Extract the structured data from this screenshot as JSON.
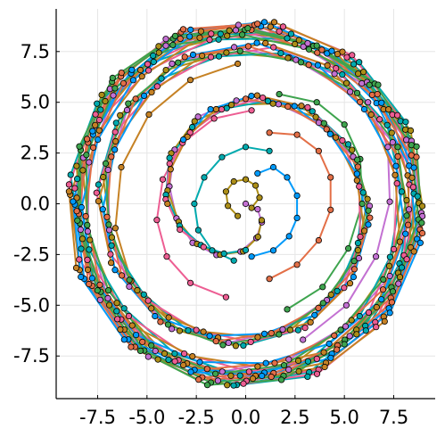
{
  "chart_data": {
    "type": "line",
    "title": "",
    "xlabel": "",
    "ylabel": "",
    "xlim": [
      -9.6,
      9.6
    ],
    "ylim": [
      -9.6,
      9.6
    ],
    "xticks": [
      -7.5,
      -5.0,
      -2.5,
      0.0,
      2.5,
      5.0,
      7.5
    ],
    "yticks": [
      -7.5,
      -5.0,
      -2.5,
      0.0,
      2.5,
      5.0,
      7.5
    ],
    "xtick_labels": [
      "-7.5",
      "-5.0",
      "-2.5",
      "0.0",
      "2.5",
      "5.0",
      "7.5"
    ],
    "ytick_labels": [
      "-7.5",
      "-5.0",
      "-2.5",
      "0.0",
      "2.5",
      "5.0",
      "7.5"
    ],
    "grid": true,
    "legend": "none",
    "markers": true,
    "series_count": 8,
    "series_colors": [
      "#009AFA",
      "#E36F47",
      "#3EA44E",
      "#C371D2",
      "#AC8E18",
      "#00AAAE",
      "#ED5E93",
      "#C68225"
    ],
    "series": [
      {
        "x": [
          0.6,
          1.4,
          2.1,
          2.6,
          2.6,
          2.2,
          1.4,
          0.3
        ],
        "y": [
          1.5,
          1.8,
          1.3,
          0.4,
          -0.7,
          -1.6,
          -2.3,
          -2.6
        ]
      },
      {
        "x": [
          1.2,
          2.6,
          3.7,
          4.3,
          4.3,
          3.7,
          2.6,
          1.2
        ],
        "y": [
          3.5,
          3.4,
          2.6,
          1.3,
          -0.3,
          -1.8,
          -3.0,
          -3.7
        ]
      },
      {
        "x": [
          1.7,
          3.6,
          5.0,
          5.8,
          5.9,
          5.2,
          3.9,
          2.1
        ],
        "y": [
          5.4,
          5.0,
          3.9,
          2.2,
          0.0,
          -2.2,
          -4.1,
          -5.2
        ]
      },
      {
        "x": [
          2.2,
          4.5,
          6.2,
          7.2,
          7.3,
          6.6,
          5.1,
          2.9
        ],
        "y": [
          7.2,
          6.4,
          5.0,
          2.8,
          0.1,
          -2.6,
          -5.0,
          -6.7
        ]
      },
      {
        "x": [
          0.3,
          0.7,
          0.5,
          0.0,
          -0.6,
          -1.0,
          -0.9,
          -0.4
        ],
        "y": [
          -0.2,
          0.3,
          0.9,
          1.2,
          1.1,
          0.6,
          -0.1,
          -0.6
        ]
      },
      {
        "x": [
          -0.6,
          -1.7,
          -2.4,
          -2.6,
          -2.1,
          -1.2,
          0.0,
          1.2
        ],
        "y": [
          -2.8,
          -2.3,
          -1.3,
          0.0,
          1.3,
          2.3,
          2.8,
          2.6
        ]
      },
      {
        "x": [
          -1.0,
          -2.8,
          -4.0,
          -4.5,
          -4.2,
          -3.2,
          -1.6,
          0.3
        ],
        "y": [
          -4.6,
          -3.9,
          -2.6,
          -0.8,
          1.2,
          3.0,
          4.2,
          4.6
        ]
      },
      {
        "x": [
          -1.4,
          -3.9,
          -5.8,
          -6.6,
          -6.3,
          -4.9,
          -2.8,
          -0.4
        ],
        "y": [
          -6.6,
          -5.6,
          -3.8,
          -1.2,
          1.8,
          4.4,
          6.1,
          6.9
        ]
      }
    ],
    "envelope_radius_x": [
      8.9,
      8.7
    ],
    "envelope_radius_y": [
      8.9,
      8.8
    ]
  }
}
